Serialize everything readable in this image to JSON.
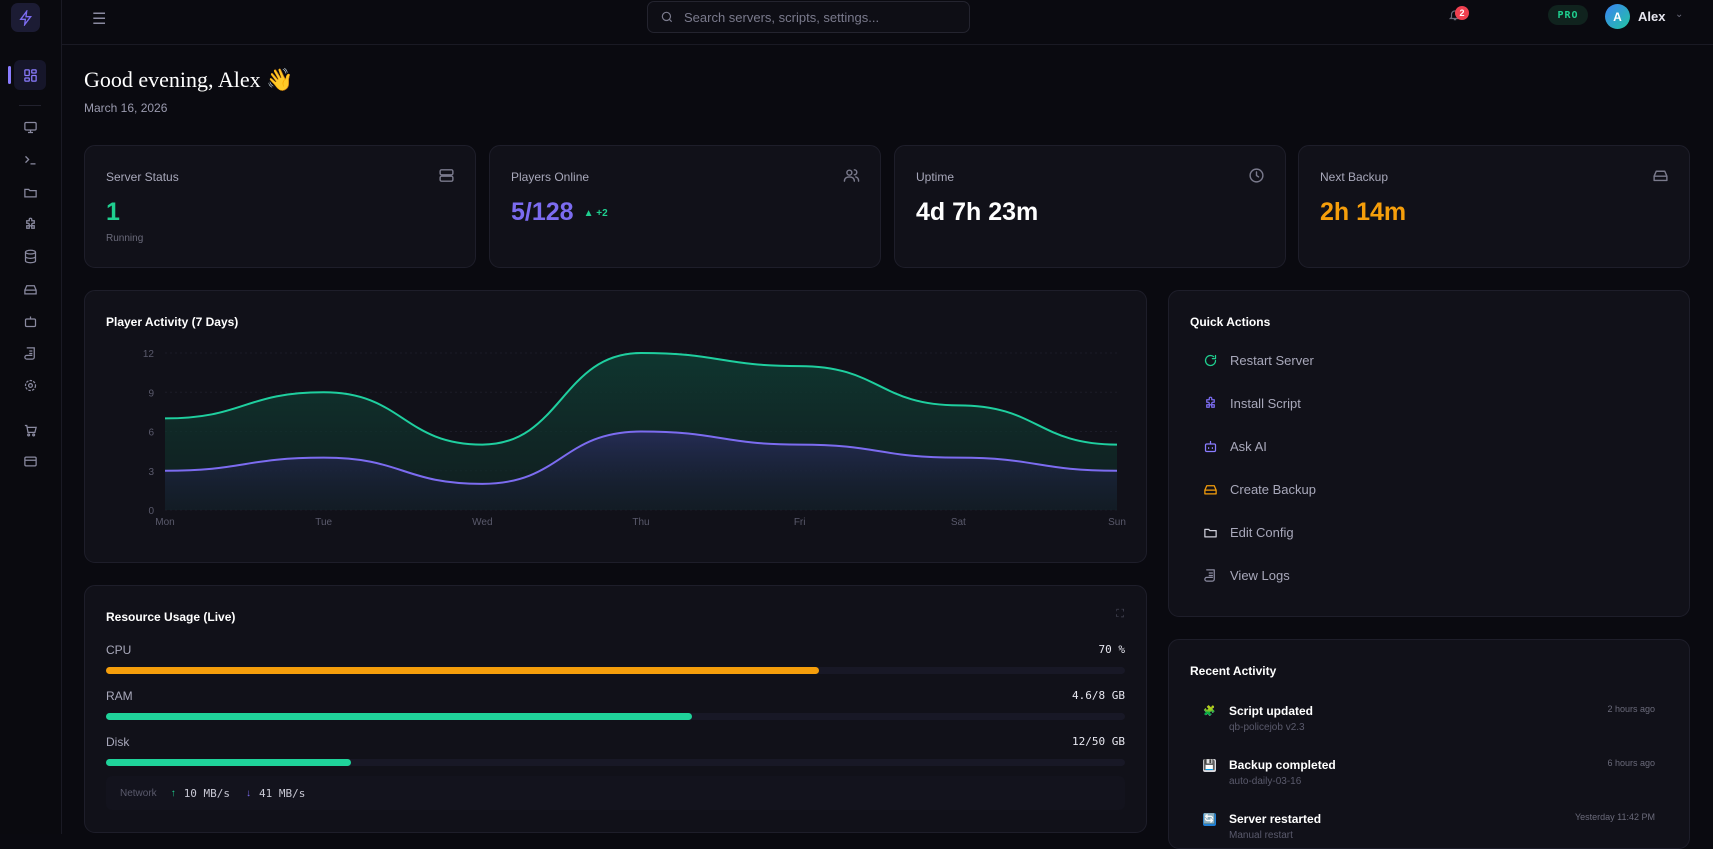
{
  "topbar": {
    "search_placeholder": "Search servers, scripts, settings...",
    "notifications": "2",
    "plan_badge": "PRO",
    "user_initial": "A",
    "user_name": "Alex"
  },
  "header": {
    "greeting": "Good evening, Alex 👋",
    "date": "March 16, 2026"
  },
  "sidebar": {
    "items": [
      "dashboard",
      "monitor",
      "terminal",
      "folder",
      "puzzle",
      "database",
      "backup",
      "bot",
      "logs",
      "settings",
      "cart",
      "billing"
    ],
    "active": "dashboard"
  },
  "stats": [
    {
      "label": "Server Status",
      "value": "1",
      "sub": "Running",
      "color": "#1fcf8f",
      "icon": "server-icon"
    },
    {
      "label": "Players Online",
      "value": "5/128",
      "delta": "▲ +2",
      "color": "#7c6cf0",
      "icon": "users-icon"
    },
    {
      "label": "Uptime",
      "value": "4d 7h 23m",
      "color": "#ffffff",
      "icon": "clock-icon"
    },
    {
      "label": "Next Backup",
      "value": "2h 14m",
      "color": "#f59e0b",
      "icon": "hard-drive-icon"
    }
  ],
  "chart_data": {
    "type": "area",
    "title": "Player Activity (7 Days)",
    "categories": [
      "Mon",
      "Tue",
      "Wed",
      "Thu",
      "Fri",
      "Sat",
      "Sun"
    ],
    "series": [
      {
        "values": [
          7,
          9,
          5,
          12,
          11,
          8,
          5
        ],
        "color": "#1fcf9f"
      },
      {
        "values": [
          3,
          4,
          2,
          6,
          5,
          4,
          3
        ],
        "color": "#7c6cf0"
      }
    ],
    "ylim": [
      0,
      12
    ],
    "yticks": [
      "0",
      "3",
      "6",
      "9",
      "12"
    ],
    "grid": true
  },
  "quick_actions": {
    "title": "Quick Actions",
    "items": [
      {
        "label": "Restart Server",
        "icon": "refresh-icon",
        "color": "#1fcf8f"
      },
      {
        "label": "Install Script",
        "icon": "puzzle-icon",
        "color": "#7c6cf0"
      },
      {
        "label": "Ask AI",
        "icon": "bot-icon",
        "color": "#8a7cff"
      },
      {
        "label": "Create Backup",
        "icon": "hard-drive-icon",
        "color": "#f59e0b"
      },
      {
        "label": "Edit Config",
        "icon": "folder-icon",
        "color": "#d0d0da"
      },
      {
        "label": "View Logs",
        "icon": "scroll-icon",
        "color": "#8a8aa0"
      }
    ]
  },
  "resources": {
    "title": "Resource Usage (Live)",
    "items": [
      {
        "label": "CPU",
        "value": "70 %",
        "percent": 70,
        "color": "#f59e0b"
      },
      {
        "label": "RAM",
        "value": "4.6/8 GB",
        "percent": 57.5,
        "color": "#1fd39a"
      },
      {
        "label": "Disk",
        "value": "12/50 GB",
        "percent": 24,
        "color": "#1fd39a"
      }
    ],
    "network_label": "Network",
    "up": "10 MB/s",
    "down": "41 MB/s"
  },
  "activity": {
    "title": "Recent Activity",
    "items": [
      {
        "title": "Script updated",
        "sub": "qb-policejob v2.3",
        "time": "2 hours ago",
        "icon": "🧩"
      },
      {
        "title": "Backup completed",
        "sub": "auto-daily-03-16",
        "time": "6 hours ago",
        "icon": "💾"
      },
      {
        "title": "Server restarted",
        "sub": "Manual restart",
        "time": "Yesterday 11:42 PM",
        "icon": "🔄"
      }
    ]
  }
}
